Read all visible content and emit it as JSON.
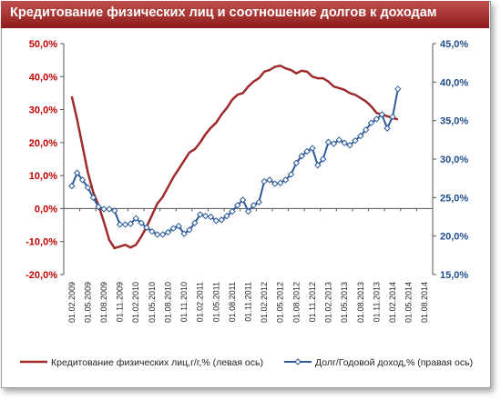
{
  "chart_data": {
    "type": "line",
    "title": "Кредитование физических лиц и соотношение долгов к доходам",
    "x_labels": [
      "01.02.2009",
      "01.05.2009",
      "01.08.2009",
      "01.11.2009",
      "01.02.2010",
      "01.05.2010",
      "01.08.2010",
      "01.11.2010",
      "01.02.2011",
      "01.05.2011",
      "01.08.2011",
      "01.11.2011",
      "01.02.2012",
      "01.05.2012",
      "01.08.2012",
      "01.11.2012",
      "01.02.2013",
      "01.05.2013",
      "01.08.2013",
      "01.11.2013",
      "01.02.2014",
      "01.05.2014",
      "01.08.2014"
    ],
    "y_left": {
      "ticks": [
        "-20,0%",
        "-10,0%",
        "0,0%",
        "10,0%",
        "20,0%",
        "30,0%",
        "40,0%",
        "50,0%"
      ],
      "ylim": [
        -20,
        50
      ]
    },
    "y_right": {
      "ticks": [
        "15,0%",
        "20,0%",
        "25,0%",
        "30,0%",
        "35,0%",
        "40,0%",
        "45,0%"
      ],
      "ylim": [
        15,
        45
      ]
    },
    "series": [
      {
        "name": "Кредитование физических лиц,г/г,% (левая ось)",
        "axis": "left",
        "color": "#9e2a2b",
        "marker": "none",
        "values": [
          34,
          27,
          19,
          11,
          5,
          1,
          -4,
          -9.5,
          -12,
          -11.5,
          -11,
          -11.8,
          -11,
          -8.5,
          -5.5,
          -2,
          1.5,
          3.5,
          6.5,
          9.5,
          12,
          14.5,
          17,
          18,
          20,
          22.5,
          24.5,
          26,
          28.5,
          30.5,
          33,
          34.5,
          35,
          37,
          38.5,
          39.5,
          41.5,
          42,
          43,
          43.3,
          42.5,
          42,
          41,
          41.8,
          41.5,
          40,
          39.5,
          39.5,
          38.5,
          37,
          36.5,
          36,
          35,
          34.5,
          33.5,
          32.5,
          31,
          29,
          28.5,
          28,
          27.5,
          27
        ]
      },
      {
        "name": "Долг/Годовой доход,% (правая ось)",
        "axis": "right",
        "color": "#2e5b9a",
        "marker": "diamond",
        "values": [
          26.5,
          28.2,
          27.3,
          26.3,
          25,
          23.8,
          23.5,
          23.5,
          23.3,
          21.5,
          21.5,
          21.6,
          22.3,
          21.7,
          21.1,
          20.6,
          20.2,
          20.2,
          20.5,
          21,
          21.3,
          20.3,
          20.8,
          21.7,
          22.8,
          22.6,
          22.5,
          22,
          22.1,
          22.6,
          23.2,
          24,
          24.7,
          23.2,
          24,
          24.4,
          27.1,
          27.3,
          26.8,
          26.9,
          27.3,
          28,
          29.5,
          30.4,
          31,
          31.4,
          29.2,
          30,
          32.2,
          32,
          32.5,
          32.1,
          31.8,
          32.4,
          33,
          33.8,
          34.7,
          35.2,
          35.8,
          34,
          35.5,
          39.1
        ]
      }
    ]
  }
}
